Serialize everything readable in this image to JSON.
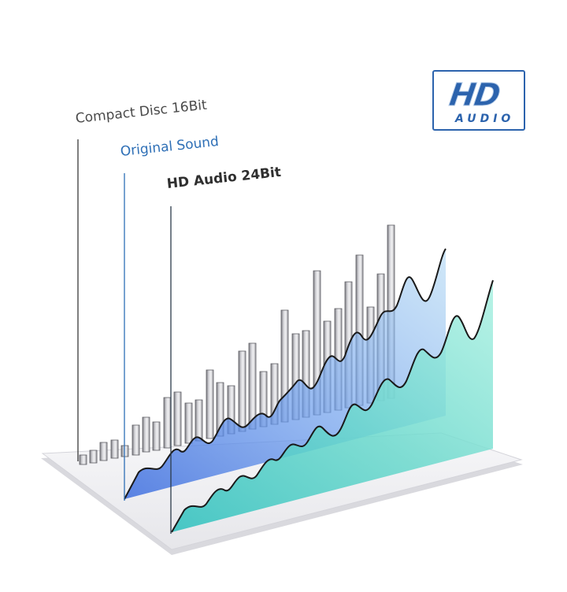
{
  "labels": {
    "compact_disc": "Compact Disc 16Bit",
    "original_sound": "Original Sound",
    "hd_audio": "HD Audio 24Bit"
  },
  "badge": {
    "big": "HD",
    "small": "AUDIO"
  },
  "colors": {
    "bars": "#a9a9ad",
    "original_sound": "#5a8fe3",
    "hd_audio": "#5ad4c6",
    "badge": "#2c63ad"
  }
}
